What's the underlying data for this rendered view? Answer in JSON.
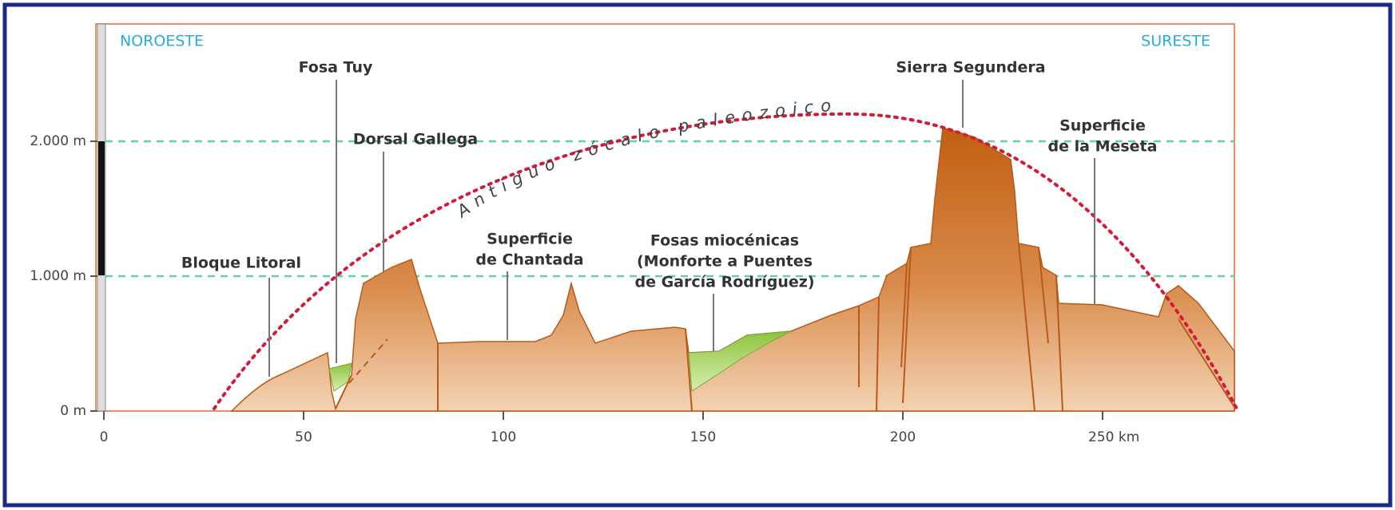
{
  "header": {
    "left": "NOROESTE",
    "right": "SURESTE"
  },
  "axes": {
    "y_ticks": [
      {
        "value": 0,
        "label": "0 m"
      },
      {
        "value": 1000,
        "label": "1.000 m"
      },
      {
        "value": 2000,
        "label": "2.000 m"
      }
    ],
    "x_ticks": [
      0,
      50,
      100,
      150,
      200,
      {
        "value": 250,
        "label": "250 km"
      }
    ]
  },
  "curve_label": "Antiguo zócalo paleozoico",
  "labels": [
    {
      "lines": [
        "Fosa Tuy"
      ]
    },
    {
      "lines": [
        "Dorsal Gallega"
      ]
    },
    {
      "lines": [
        "Sierra Segundera"
      ]
    },
    {
      "lines": [
        "Superficie",
        "de la Meseta"
      ]
    },
    {
      "lines": [
        "Bloque Litoral"
      ]
    },
    {
      "lines": [
        "Superficie",
        "de Chantada"
      ]
    },
    {
      "lines": [
        "Fosas miocénicas",
        "(Monforte a Puentes",
        "de García Rodríguez)"
      ]
    }
  ]
}
